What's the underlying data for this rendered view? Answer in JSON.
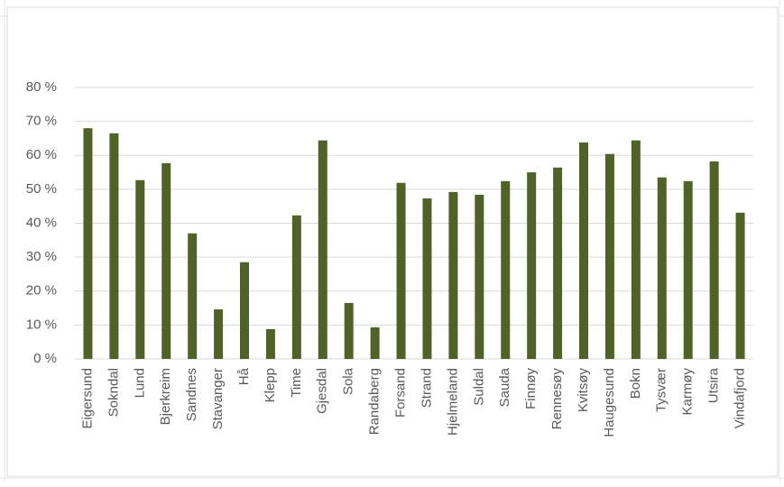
{
  "chart_data": {
    "type": "bar",
    "categories": [
      "Eigersund",
      "Sokndal",
      "Lund",
      "Bjerkreim",
      "Sandnes",
      "Stavanger",
      "Hå",
      "Klepp",
      "Time",
      "Gjesdal",
      "Sola",
      "Randaberg",
      "Forsand",
      "Strand",
      "Hjelmeland",
      "Suldal",
      "Sauda",
      "Finnøy",
      "Rennesøy",
      "Kvitsøy",
      "Haugesund",
      "Bokn",
      "Tysvær",
      "Karmøy",
      "Utsira",
      "Vindafjord"
    ],
    "values": [
      68,
      66.5,
      52.7,
      57.7,
      37,
      14.6,
      28.5,
      8.8,
      42.3,
      64.4,
      16.5,
      9.3,
      51.9,
      47.3,
      49.2,
      48.4,
      52.4,
      55,
      56.4,
      63.8,
      60.4,
      64.4,
      53.5,
      52.4,
      58.2,
      43.1
    ],
    "color": "#4f6228",
    "ylim": [
      0,
      80
    ],
    "yticks": [
      {
        "value": 0,
        "label": "0 %"
      },
      {
        "value": 10,
        "label": "10 %"
      },
      {
        "value": 20,
        "label": "20 %"
      },
      {
        "value": 30,
        "label": "30 %"
      },
      {
        "value": 40,
        "label": "40 %"
      },
      {
        "value": 50,
        "label": "50 %"
      },
      {
        "value": 60,
        "label": "60 %"
      },
      {
        "value": 70,
        "label": "70 %"
      },
      {
        "value": 80,
        "label": "80 %"
      }
    ],
    "grid": true
  }
}
